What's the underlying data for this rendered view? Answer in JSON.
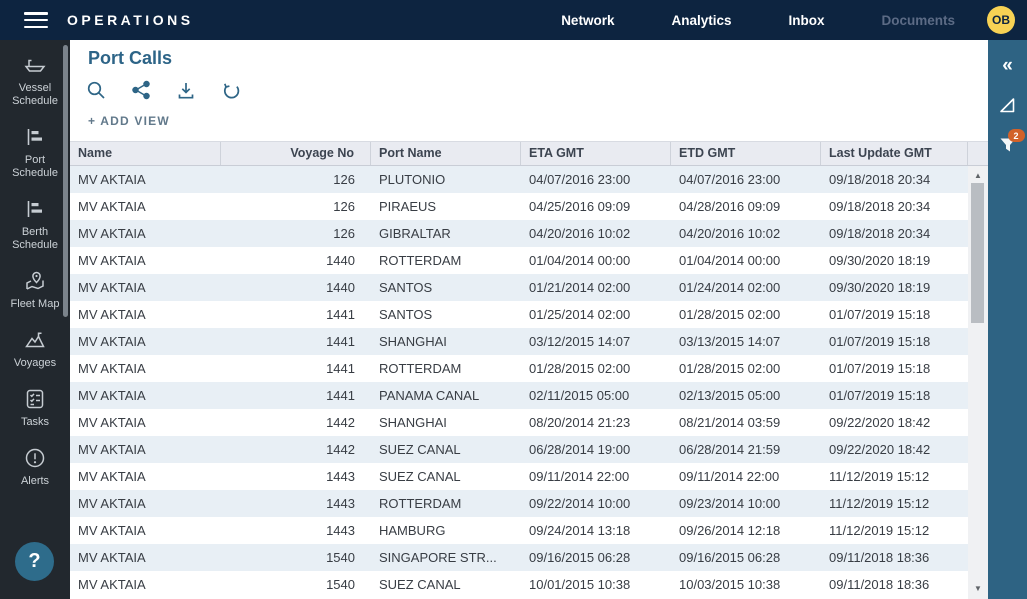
{
  "topbar": {
    "brand": "OPERATIONS",
    "nav": [
      {
        "label": "Network"
      },
      {
        "label": "Analytics"
      },
      {
        "label": "Inbox"
      },
      {
        "label": "Documents",
        "disabled": true
      }
    ],
    "avatar_initials": "OB"
  },
  "sidebar": {
    "items": [
      {
        "label": "Vessel Schedule",
        "icon": "ship-icon"
      },
      {
        "label": "Port Schedule",
        "icon": "gantt-icon"
      },
      {
        "label": "Berth Schedule",
        "icon": "gantt-icon"
      },
      {
        "label": "Fleet Map",
        "icon": "map-pin-icon"
      },
      {
        "label": "Voyages",
        "icon": "route-icon"
      },
      {
        "label": "Tasks",
        "icon": "checklist-icon"
      },
      {
        "label": "Alerts",
        "icon": "alert-icon"
      }
    ],
    "help_label": "?"
  },
  "main": {
    "title": "Port Calls",
    "add_view_label": "+ ADD VIEW",
    "toolbar_icons": [
      "search-icon",
      "share-icon",
      "download-icon",
      "undo-icon"
    ]
  },
  "right_toolbar": {
    "collapse_glyph": "«",
    "filter_badge": "2",
    "icons": [
      "collapse-icon",
      "select-cursor-icon",
      "filter-icon"
    ]
  },
  "table": {
    "columns": [
      "Name",
      "Voyage No",
      "Port Name",
      "ETA GMT",
      "ETD GMT",
      "Last Update GMT"
    ],
    "rows": [
      [
        "MV AKTAIA",
        "126",
        "PLUTONIO",
        "04/07/2016 23:00",
        "04/07/2016 23:00",
        "09/18/2018 20:34"
      ],
      [
        "MV AKTAIA",
        "126",
        "PIRAEUS",
        "04/25/2016 09:09",
        "04/28/2016 09:09",
        "09/18/2018 20:34"
      ],
      [
        "MV AKTAIA",
        "126",
        "GIBRALTAR",
        "04/20/2016 10:02",
        "04/20/2016 10:02",
        "09/18/2018 20:34"
      ],
      [
        "MV AKTAIA",
        "1440",
        "ROTTERDAM",
        "01/04/2014 00:00",
        "01/04/2014 00:00",
        "09/30/2020 18:19"
      ],
      [
        "MV AKTAIA",
        "1440",
        "SANTOS",
        "01/21/2014 02:00",
        "01/24/2014 02:00",
        "09/30/2020 18:19"
      ],
      [
        "MV AKTAIA",
        "1441",
        "SANTOS",
        "01/25/2014 02:00",
        "01/28/2015 02:00",
        "01/07/2019 15:18"
      ],
      [
        "MV AKTAIA",
        "1441",
        "SHANGHAI",
        "03/12/2015 14:07",
        "03/13/2015 14:07",
        "01/07/2019 15:18"
      ],
      [
        "MV AKTAIA",
        "1441",
        "ROTTERDAM",
        "01/28/2015 02:00",
        "01/28/2015 02:00",
        "01/07/2019 15:18"
      ],
      [
        "MV AKTAIA",
        "1441",
        "PANAMA CANAL",
        "02/11/2015 05:00",
        "02/13/2015 05:00",
        "01/07/2019 15:18"
      ],
      [
        "MV AKTAIA",
        "1442",
        "SHANGHAI",
        "08/20/2014 21:23",
        "08/21/2014 03:59",
        "09/22/2020 18:42"
      ],
      [
        "MV AKTAIA",
        "1442",
        "SUEZ CANAL",
        "06/28/2014 19:00",
        "06/28/2014 21:59",
        "09/22/2020 18:42"
      ],
      [
        "MV AKTAIA",
        "1443",
        "SUEZ CANAL",
        "09/11/2014 22:00",
        "09/11/2014 22:00",
        "11/12/2019 15:12"
      ],
      [
        "MV AKTAIA",
        "1443",
        "ROTTERDAM",
        "09/22/2014 10:00",
        "09/23/2014 10:00",
        "11/12/2019 15:12"
      ],
      [
        "MV AKTAIA",
        "1443",
        "HAMBURG",
        "09/24/2014 13:18",
        "09/26/2014 12:18",
        "11/12/2019 15:12"
      ],
      [
        "MV AKTAIA",
        "1540",
        "SINGAPORE STR...",
        "09/16/2015 06:28",
        "09/16/2015 06:28",
        "09/11/2018 18:36"
      ],
      [
        "MV AKTAIA",
        "1540",
        "SUEZ CANAL",
        "10/01/2015 10:38",
        "10/03/2015 10:38",
        "09/11/2018 18:36"
      ]
    ]
  },
  "colors": {
    "topbar_bg": "#0d2440",
    "left_sidebar_bg": "#22282e",
    "right_sidebar_bg": "#2e6383",
    "accent": "#2e6586",
    "avatar_bg": "#f7d254",
    "badge_bg": "#d2622a",
    "row_alt_bg": "#e8eff5",
    "table_header_bg": "#e9ebf1"
  }
}
